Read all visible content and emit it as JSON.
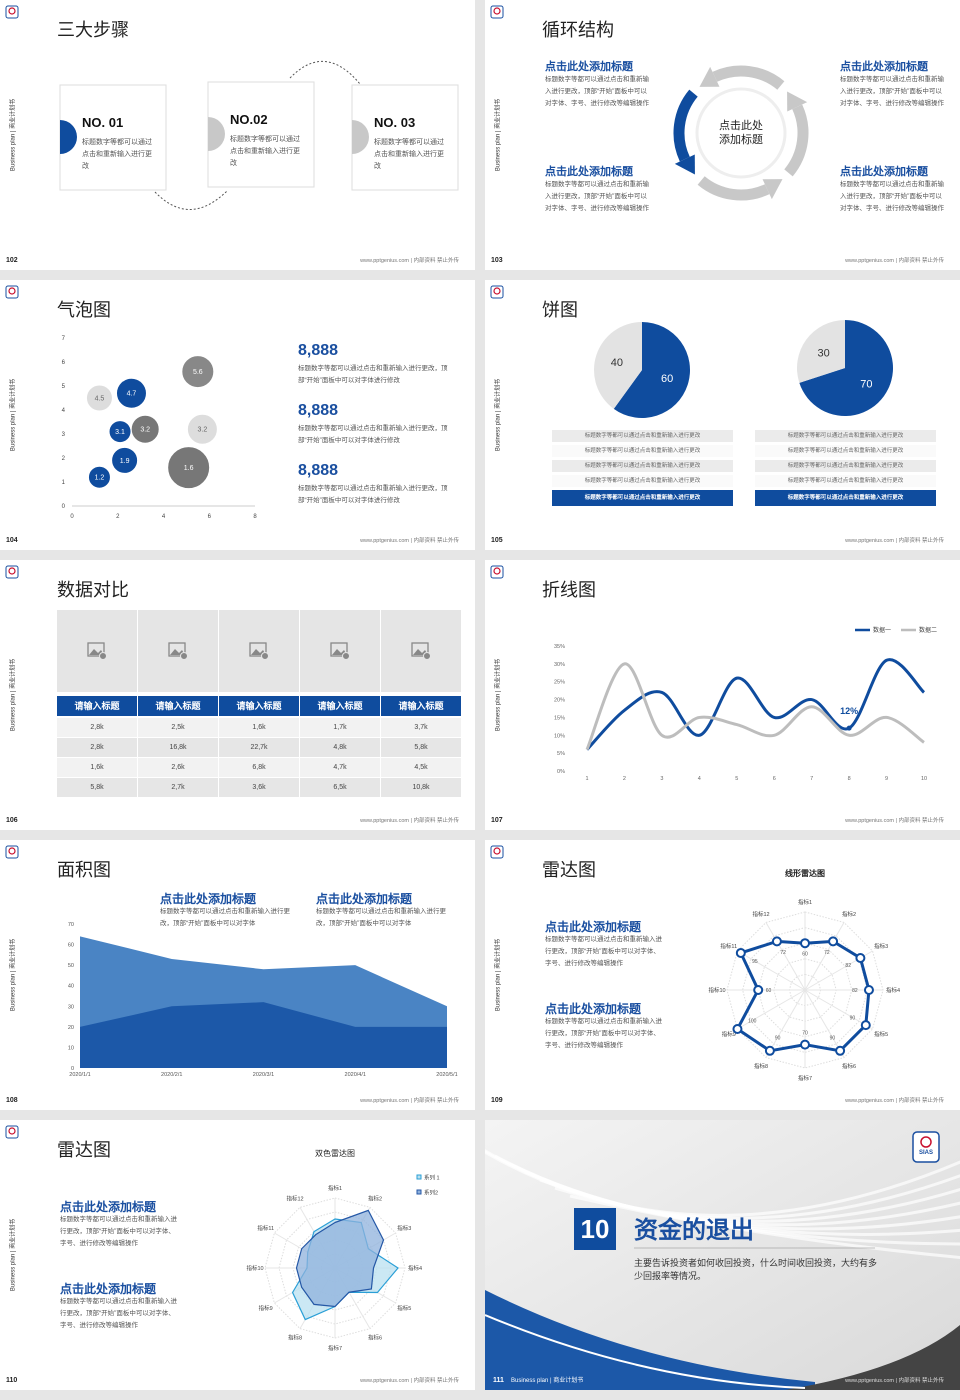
{
  "footer": {
    "url": "www.pptgenius.com | 内部资料 禁止外传",
    "side": "Business plan | 商业计划书"
  },
  "slides": [
    {
      "page": "102",
      "title": "三大步骤",
      "steps": [
        {
          "label": "NO. 01",
          "text": "标题数字等都可以通过点击和重新输入进行更改"
        },
        {
          "label": "NO.02",
          "text": "标题数字等都可以通过点击和重新输入进行更改"
        },
        {
          "label": "NO. 03",
          "text": "标题数字等都可以通过点击和重新输入进行更改"
        }
      ]
    },
    {
      "page": "103",
      "title": "循环结构",
      "center": "点击此处添加标题",
      "blocks": [
        {
          "title": "点击此处添加标题",
          "text": "标题数字等都可以通过点击和重新输入进行更改，顶部“开始”面板中可以对字体、字号、进行修改等编辑操作"
        },
        {
          "title": "点击此处添加标题",
          "text": "标题数字等都可以通过点击和重新输入进行更改，顶部“开始”面板中可以对字体、字号、进行修改等编辑操作"
        },
        {
          "title": "点击此处添加标题",
          "text": "标题数字等都可以通过点击和重新输入进行更改，顶部“开始”面板中可以对字体、字号、进行修改等编辑操作"
        },
        {
          "title": "点击此处添加标题",
          "text": "标题数字等都可以通过点击和重新输入进行更改，顶部“开始”面板中可以对字体、字号、进行修改等编辑操作"
        }
      ]
    },
    {
      "page": "104",
      "title": "气泡图",
      "stats": [
        {
          "value": "8,888",
          "text": "标题数字等都可以通过点击和重新输入进行更改，顶部“开始”面板中可以对字体进行修改"
        },
        {
          "value": "8,888",
          "text": "标题数字等都可以通过点击和重新输入进行更改，顶部“开始”面板中可以对字体进行修改"
        },
        {
          "value": "8,888",
          "text": "标题数字等都可以通过点击和重新输入进行更改，顶部“开始”面板中可以对字体进行修改"
        }
      ]
    },
    {
      "page": "105",
      "title": "饼图",
      "lists": [
        [
          "标题数字等都可以通过点击和重新输入进行更改",
          "标题数字等都可以通过点击和重新输入进行更改",
          "标题数字等都可以通过点击和重新输入进行更改",
          "标题数字等都可以通过点击和重新输入进行更改",
          "标题数字等都可以通过点击和重新输入进行更改"
        ],
        [
          "标题数字等都可以通过点击和重新输入进行更改",
          "标题数字等都可以通过点击和重新输入进行更改",
          "标题数字等都可以通过点击和重新输入进行更改",
          "标题数字等都可以通过点击和重新输入进行更改",
          "标题数字等都可以通过点击和重新输入进行更改"
        ]
      ]
    },
    {
      "page": "106",
      "title": "数据对比",
      "table": {
        "header": [
          "请输入标题",
          "请输入标题",
          "请输入标题",
          "请输入标题",
          "请输入标题"
        ],
        "rows": [
          [
            "2,8k",
            "2,5k",
            "1,6k",
            "1,7k",
            "3,7k"
          ],
          [
            "2,8k",
            "16,8k",
            "22,7k",
            "4,8k",
            "5,8k"
          ],
          [
            "1,6k",
            "2,6k",
            "6,8k",
            "4,7k",
            "4,5k"
          ],
          [
            "5,8k",
            "2,7k",
            "3,6k",
            "6,5k",
            "10,8k"
          ]
        ]
      }
    },
    {
      "page": "107",
      "title": "折线图"
    },
    {
      "page": "108",
      "title": "面积图",
      "blocks": [
        {
          "title": "点击此处添加标题",
          "text": "标题数字等都可以通过点击和重新输入进行更改，顶部“开始”面板中可以对字体"
        },
        {
          "title": "点击此处添加标题",
          "text": "标题数字等都可以通过点击和重新输入进行更改，顶部“开始”面板中可以对字体"
        }
      ]
    },
    {
      "page": "109",
      "title": "雷达图",
      "blocks": [
        {
          "title": "点击此处添加标题",
          "text": "标题数字等都可以通过点击和重新输入进行更改，顶部“开始”面板中可以对字体、字号、进行修改等编辑操作"
        },
        {
          "title": "点击此处添加标题",
          "text": "标题数字等都可以通过点击和重新输入进行更改，顶部“开始”面板中可以对字体、字号、进行修改等编辑操作"
        }
      ]
    },
    {
      "page": "110",
      "title": "雷达图",
      "blocks": [
        {
          "title": "点击此处添加标题",
          "text": "标题数字等都可以通过点击和重新输入进行更改，顶部“开始”面板中可以对字体、字号、进行修改等编辑操作"
        },
        {
          "title": "点击此处添加标题",
          "text": "标题数字等都可以通过点击和重新输入进行更改，顶部“开始”面板中可以对字体、字号、进行修改等编辑操作"
        }
      ]
    },
    {
      "page": "111",
      "number": "10",
      "title": "资金的退出",
      "text": "主要告诉投资者如何收回投资，什么时间收回投资，大约有多少回报率等情况。",
      "brand": "SIAS"
    }
  ],
  "chart_data": [
    {
      "type": "bubble",
      "xlim": [
        0,
        8
      ],
      "xticks": [
        0,
        2,
        4,
        6,
        8
      ],
      "ylim": [
        0,
        7
      ],
      "yticks": [
        0,
        1,
        2,
        3,
        4,
        5,
        6,
        7
      ],
      "points": [
        {
          "x": 1.2,
          "y": 1.2,
          "size": 11,
          "label": 1.2,
          "color": "#0f4c9e"
        },
        {
          "x": 2.3,
          "y": 1.9,
          "size": 13,
          "label": 1.9,
          "color": "#0f4c9e"
        },
        {
          "x": 1.2,
          "y": 4.5,
          "size": 13,
          "label": 4.5,
          "color": "#dddddd"
        },
        {
          "x": 3.2,
          "y": 3.2,
          "size": 14,
          "label": 3.2,
          "color": "#777777"
        },
        {
          "x": 2.1,
          "y": 3.1,
          "size": 11,
          "label": 3.1,
          "color": "#0f4c9e"
        },
        {
          "x": 2.6,
          "y": 4.7,
          "size": 15,
          "label": 4.7,
          "color": "#0f4c9e"
        },
        {
          "x": 5.5,
          "y": 5.6,
          "size": 16,
          "label": 5.6,
          "color": "#888888"
        },
        {
          "x": 5.7,
          "y": 3.2,
          "size": 15,
          "label": 3.2,
          "color": "#dddddd"
        },
        {
          "x": 5.1,
          "y": 1.6,
          "size": 21,
          "label": 1.6,
          "color": "#777777"
        }
      ]
    },
    {
      "type": "pie",
      "values": [
        60,
        40
      ],
      "colors": [
        "#0f4c9e",
        "#e3e3e3"
      ]
    },
    {
      "type": "pie",
      "values": [
        70,
        30
      ],
      "colors": [
        "#0f4c9e",
        "#e3e3e3"
      ]
    },
    {
      "type": "line",
      "x": [
        1,
        2,
        3,
        4,
        5,
        6,
        7,
        8,
        9,
        10
      ],
      "xlim": [
        1,
        10
      ],
      "xticks": [
        1,
        2,
        3,
        4,
        5,
        6,
        7,
        8,
        9,
        10
      ],
      "ylim": [
        0,
        35
      ],
      "yticks": [
        {
          "value": 0,
          "label": "0%"
        },
        {
          "value": 5,
          "label": "5%"
        },
        {
          "value": 10,
          "label": "10%"
        },
        {
          "value": 15,
          "label": "15%"
        },
        {
          "value": 20,
          "label": "20%"
        },
        {
          "value": 25,
          "label": "25%"
        },
        {
          "value": 30,
          "label": "30%"
        },
        {
          "value": 35,
          "label": "35%"
        }
      ],
      "series": [
        {
          "name": "数据一",
          "color": "#0f4c9e",
          "values": [
            6,
            17,
            22,
            10,
            26,
            15,
            20,
            12,
            31,
            22
          ]
        },
        {
          "name": "数据二",
          "color": "#bdbdbd",
          "values": [
            6,
            30,
            10,
            15,
            13,
            10,
            18,
            10,
            15,
            8
          ]
        }
      ],
      "annotation": {
        "label": "12%",
        "x": 8,
        "y": 12
      }
    },
    {
      "type": "area",
      "categories": [
        "2020/1/1",
        "2020/2/1",
        "2020/3/1",
        "2020/4/1",
        "2020/5/1"
      ],
      "ylim": [
        0,
        70
      ],
      "yticks": [
        0,
        10,
        20,
        30,
        40,
        50,
        60,
        70
      ],
      "series": [
        {
          "color": "#4a84c4",
          "values": [
            64,
            53,
            48,
            50,
            30
          ]
        },
        {
          "color": "#1c58a8",
          "values": [
            20,
            30,
            32,
            20,
            20
          ]
        }
      ]
    },
    {
      "type": "radar",
      "title": "线形雷达图",
      "categories": [
        "指标1",
        "指标2",
        "指标3",
        "指标4",
        "指标5",
        "指标6",
        "指标7",
        "指标8",
        "指标9",
        "指标10",
        "指标11",
        "指标12"
      ],
      "rlim": [
        0,
        100
      ],
      "rticks": [
        20,
        40,
        60,
        80,
        100
      ],
      "show_values": true,
      "series": [
        {
          "color": "#0f4c9e",
          "values": [
            60,
            72,
            82,
            82,
            90,
            90,
            70,
            90,
            100,
            60,
            95,
            72
          ]
        }
      ]
    },
    {
      "type": "radar",
      "title": "双色雷达图",
      "categories": [
        "指标1",
        "指标2",
        "指标3",
        "指标4",
        "指标5",
        "指标6",
        "指标7",
        "指标8",
        "指标9",
        "指标10",
        "指标11",
        "指标12"
      ],
      "rlim": [
        0,
        100
      ],
      "rticks": [
        20,
        40,
        60,
        80,
        100
      ],
      "show_values": false,
      "series": [
        {
          "name": "系列 1",
          "color": "#2a9fd6",
          "fill": "#b9e0f0",
          "values": [
            70,
            75,
            55,
            90,
            70,
            40,
            55,
            85,
            70,
            40,
            45,
            60
          ]
        },
        {
          "name": "系列2",
          "color": "#2457a6",
          "fill": "#8fb1dc",
          "values": [
            65,
            95,
            80,
            55,
            60,
            40,
            55,
            60,
            55,
            55,
            55,
            55
          ]
        }
      ]
    }
  ]
}
